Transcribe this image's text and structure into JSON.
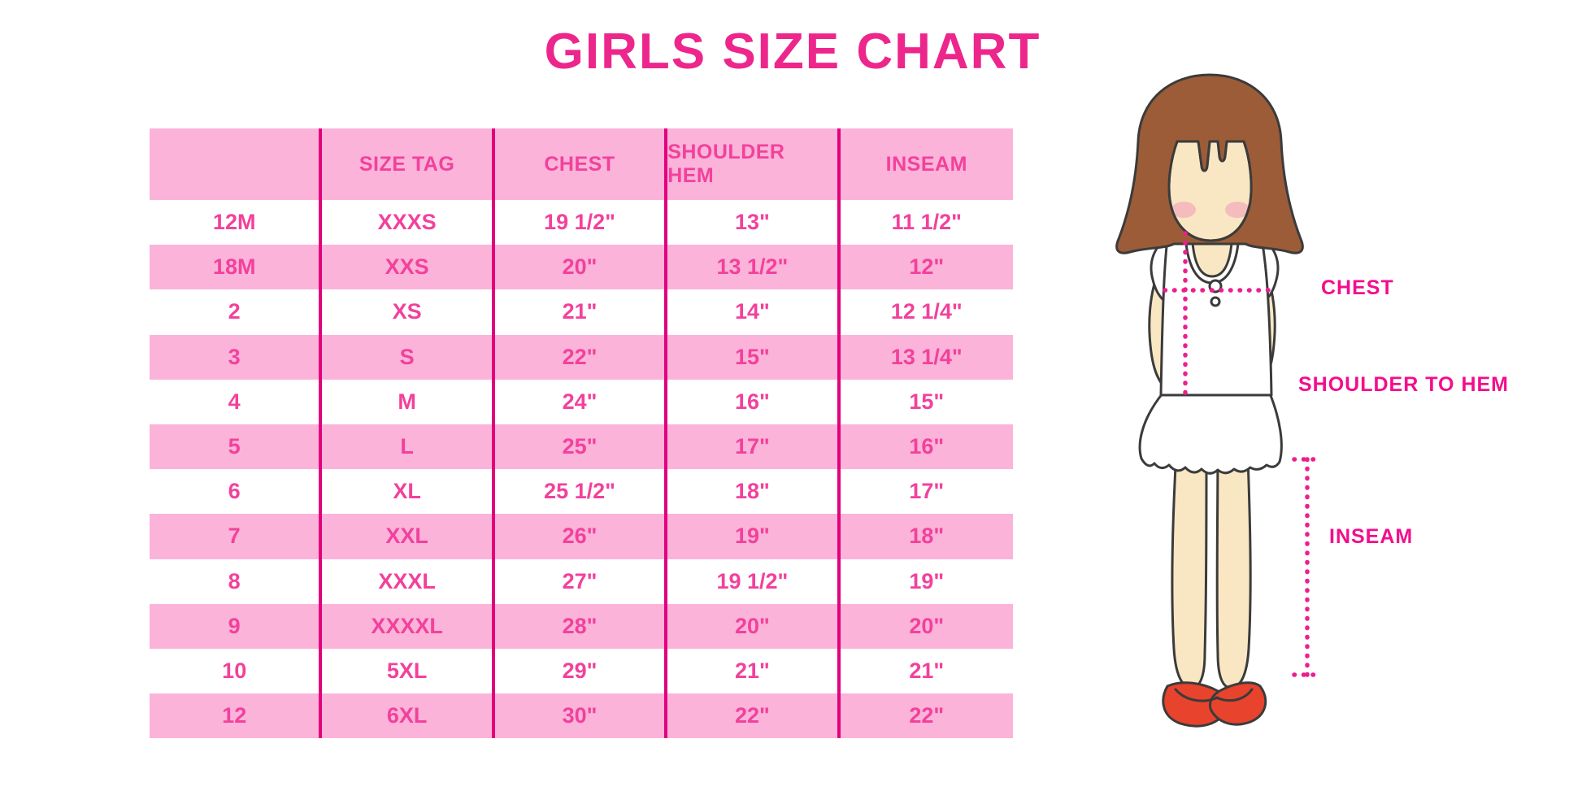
{
  "title": "GIRLS SIZE CHART",
  "chart_data": {
    "type": "table",
    "title": "GIRLS SIZE CHART",
    "columns": [
      "",
      "SIZE TAG",
      "CHEST",
      "SHOULDER HEM",
      "INSEAM"
    ],
    "rows": [
      [
        "12M",
        "XXXS",
        "19 1/2\"",
        "13\"",
        "11 1/2\""
      ],
      [
        "18M",
        "XXS",
        "20\"",
        "13 1/2\"",
        "12\""
      ],
      [
        "2",
        "XS",
        "21\"",
        "14\"",
        "12 1/4\""
      ],
      [
        "3",
        "S",
        "22\"",
        "15\"",
        "13 1/4\""
      ],
      [
        "4",
        "M",
        "24\"",
        "16\"",
        "15\""
      ],
      [
        "5",
        "L",
        "25\"",
        "17\"",
        "16\""
      ],
      [
        "6",
        "XL",
        "25 1/2\"",
        "18\"",
        "17\""
      ],
      [
        "7",
        "XXL",
        "26\"",
        "19\"",
        "18\""
      ],
      [
        "8",
        "XXXL",
        "27\"",
        "19 1/2\"",
        "19\""
      ],
      [
        "9",
        "XXXXL",
        "28\"",
        "20\"",
        "20\""
      ],
      [
        "10",
        "5XL",
        "29\"",
        "21\"",
        "21\""
      ],
      [
        "12",
        "6XL",
        "30\"",
        "22\"",
        "22\""
      ]
    ],
    "layout": {
      "row_striping": "alternating pink/white starting white",
      "grid": "vertical magenta separators only"
    }
  },
  "figure": {
    "chest_label": "CHEST",
    "shoulder_label": "SHOULDER TO HEM",
    "inseam_label": "INSEAM"
  },
  "colors": {
    "row-pink": "#FBB3D9",
    "line": "#E2017D",
    "text": "#F2419C",
    "title": "#ED268C",
    "label": "#F30E8C",
    "dots": "#ED1E8F",
    "skin": "#F9E7C3",
    "hair": "#9C5C38",
    "blush": "#F2A4BC",
    "shoe": "#E8432C",
    "outline": "#3B3B3B"
  }
}
